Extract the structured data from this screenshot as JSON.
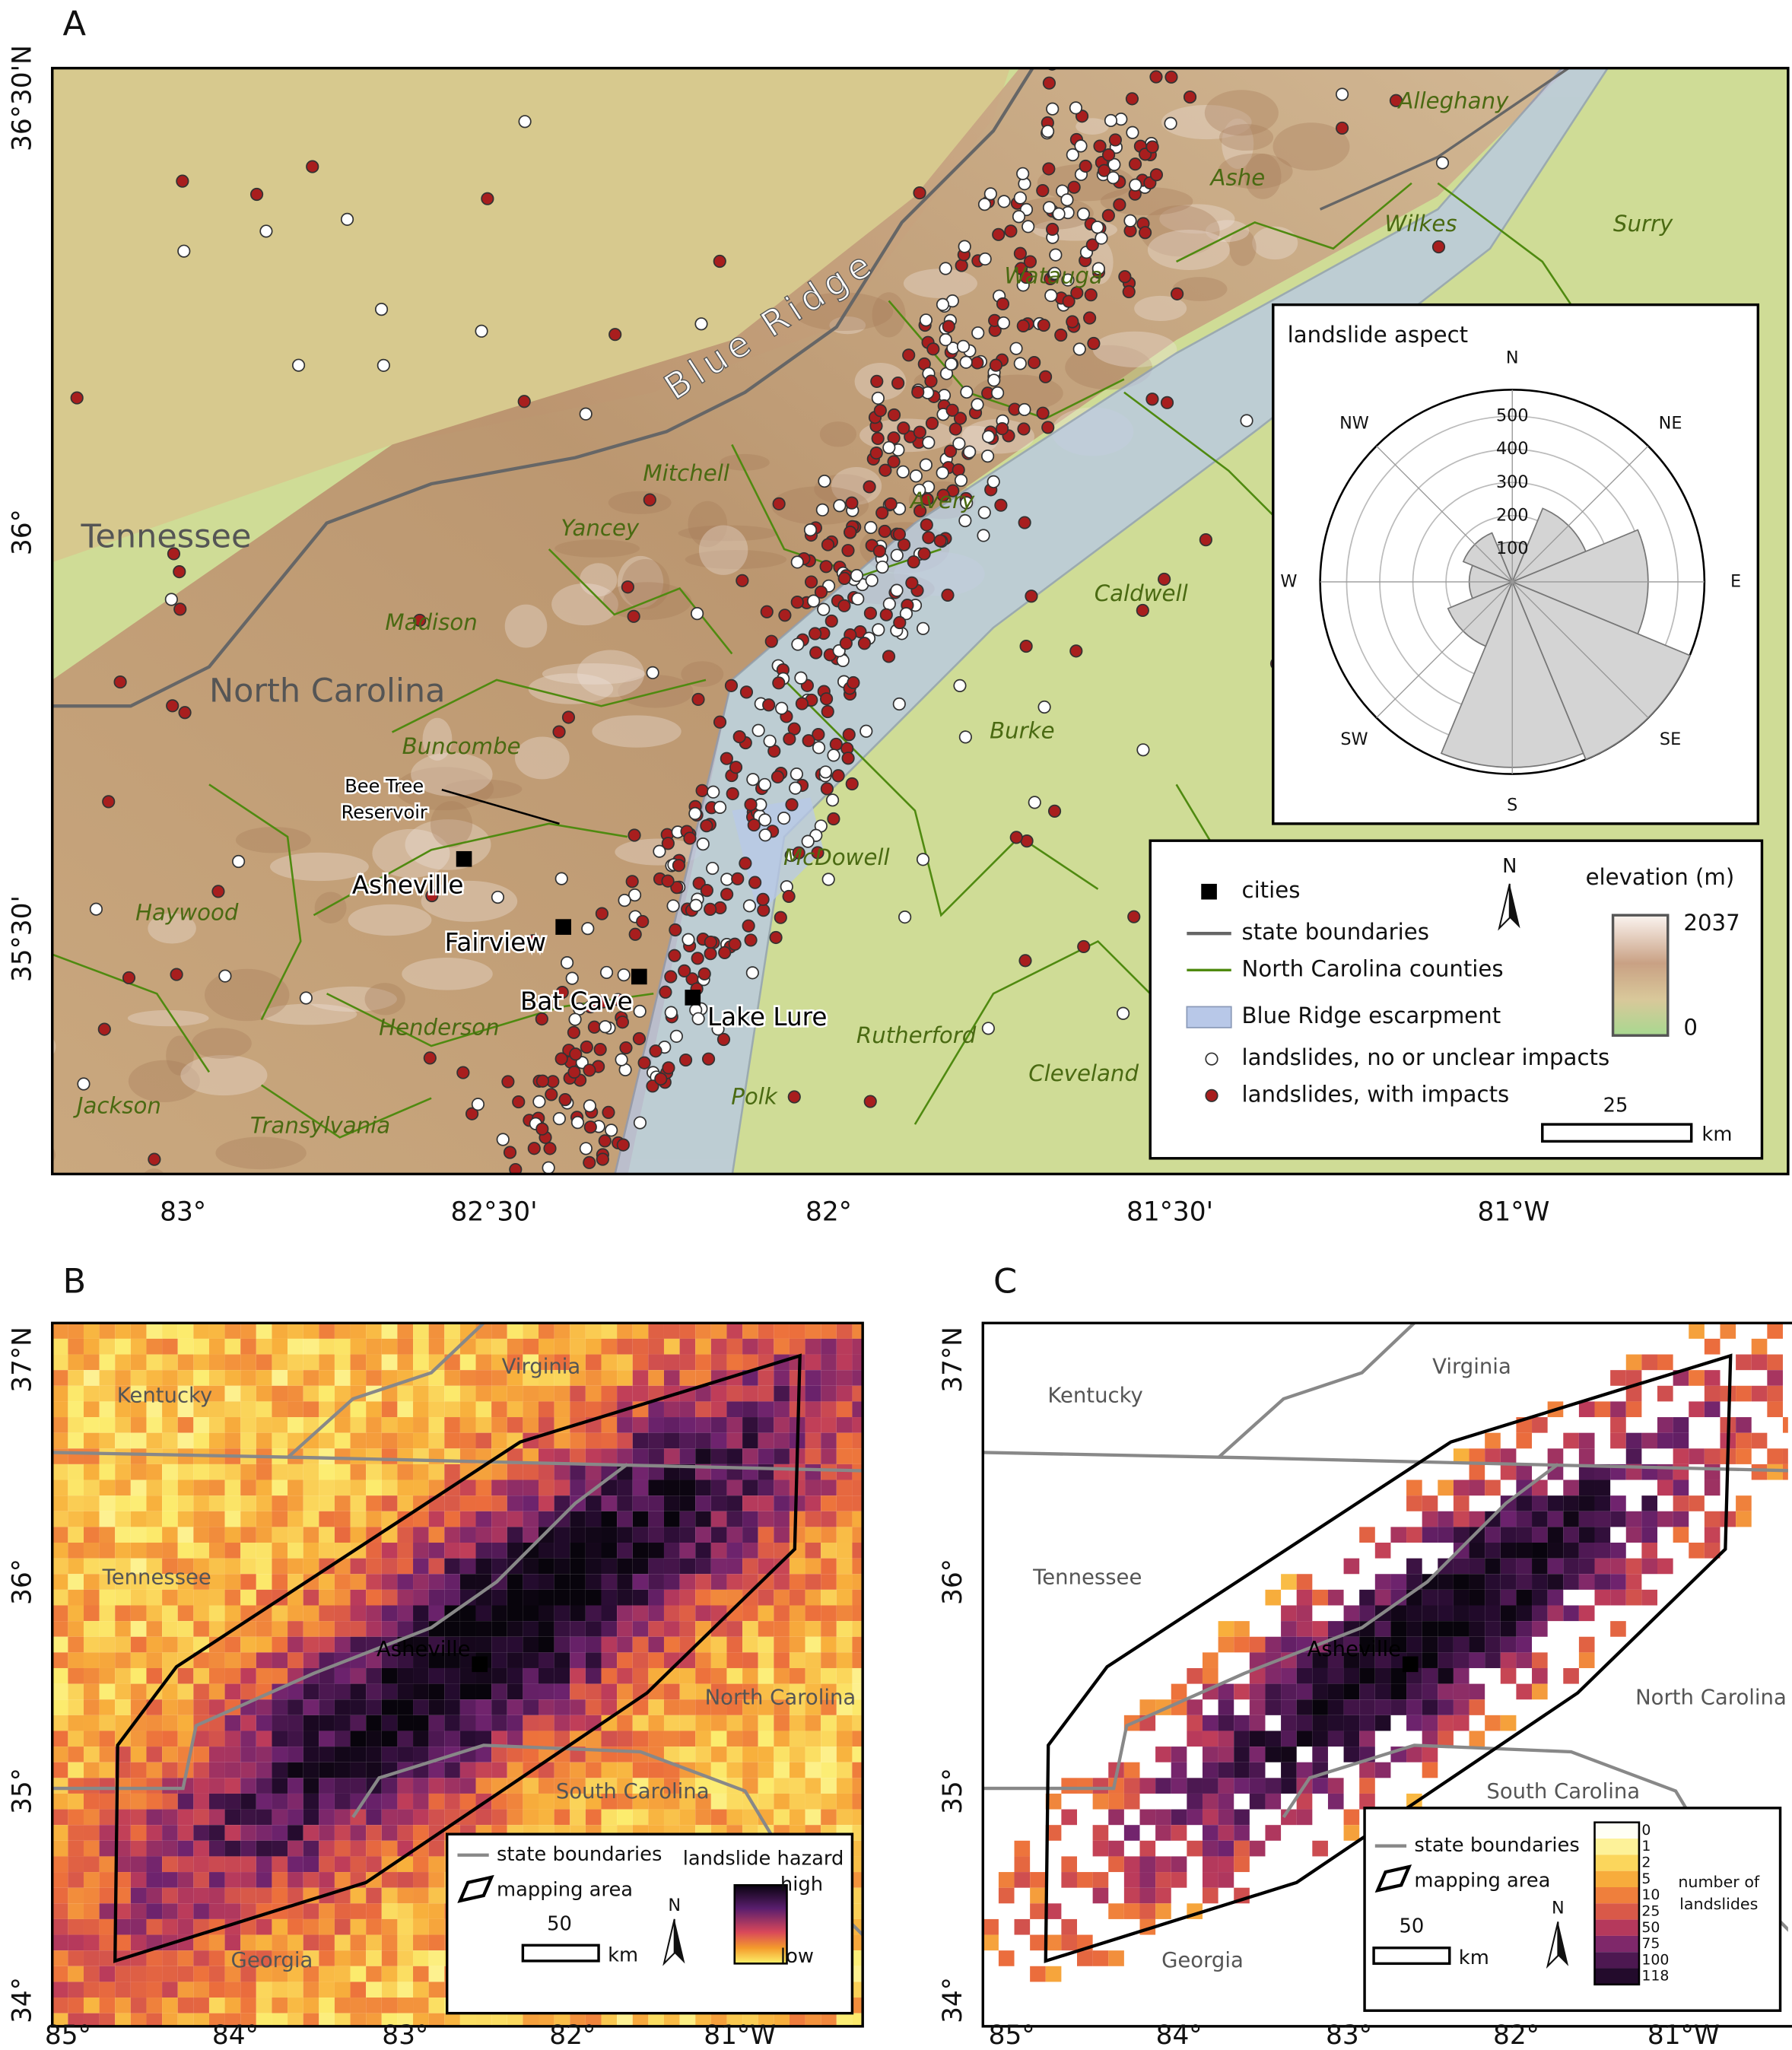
{
  "panel_labels": [
    "A",
    "B",
    "C"
  ],
  "map_a": {
    "lat_labels": [
      "36°30'N",
      "36°",
      "35°30'"
    ],
    "lon_labels": [
      "83°",
      "82°30'",
      "82°",
      "81°30'",
      "81°W"
    ],
    "regions": [
      "Tennessee",
      "North Carolina"
    ],
    "ridge_label": "Blue Ridge",
    "counties": [
      "Alleghany",
      "Ashe",
      "Wilkes",
      "Surry",
      "Watauga",
      "Mitchell",
      "Avery",
      "Yancey",
      "Caldwell",
      "Madison",
      "Burke",
      "Buncombe",
      "McDowell",
      "Haywood",
      "Henderson",
      "Rutherford",
      "Cleveland",
      "Polk",
      "Jackson",
      "Transylvania"
    ],
    "cities": [
      "Asheville",
      "Fairview",
      "Bat Cave",
      "Lake Lure"
    ],
    "feature_label": [
      "Bee Tree",
      "Reservoir"
    ],
    "legend": [
      "cities",
      "state boundaries",
      "North Carolina counties",
      "Blue Ridge escarpment",
      "landslides, no or unclear impacts",
      "landslides, with impacts"
    ],
    "north": "N",
    "elevation_title": "elevation (m)",
    "elevation_max": 2037,
    "elevation_min": 0,
    "scale": 25,
    "scale_unit": "km"
  },
  "chart_data": {
    "type": "rose",
    "title": "landslide aspect",
    "categories": [
      "N",
      "NE",
      "E",
      "SE",
      "S",
      "SW",
      "W",
      "NW"
    ],
    "values": [
      120,
      240,
      410,
      580,
      560,
      210,
      130,
      160
    ],
    "rlim": [
      0,
      580
    ],
    "rticks": [
      100,
      200,
      300,
      400,
      500
    ],
    "color": "#d4d4d4"
  },
  "map_b": {
    "lat_labels": [
      "37°N",
      "36°",
      "35°",
      "34°"
    ],
    "lon_labels": [
      "85°",
      "84°",
      "83°",
      "82°",
      "81°W"
    ],
    "places": [
      "Kentucky",
      "Virginia",
      "Tennessee",
      "Asheville",
      "North Carolina",
      "South Carolina",
      "Georgia"
    ],
    "legend": [
      "state boundaries",
      "mapping area"
    ],
    "scale": 50,
    "scale_unit": "km",
    "north": "N",
    "colorbar_title": "landslide hazard",
    "colorbar_high": "high",
    "colorbar_low": "low"
  },
  "map_c": {
    "lat_labels": [
      "37°N",
      "36°",
      "35°",
      "34°"
    ],
    "lon_labels": [
      "85°",
      "84°",
      "83°",
      "82°",
      "81°W"
    ],
    "places": [
      "Kentucky",
      "Virginia",
      "Tennessee",
      "Asheville",
      "North Carolina",
      "South Carolina",
      "Georgia"
    ],
    "legend": [
      "state boundaries",
      "mapping area"
    ],
    "scale": 50,
    "scale_unit": "km",
    "north": "N",
    "colorbar_ticks": [
      0,
      1,
      2,
      5,
      10,
      25,
      50,
      75,
      100,
      118
    ],
    "colorbar_title": [
      "number of",
      "landslides"
    ]
  }
}
